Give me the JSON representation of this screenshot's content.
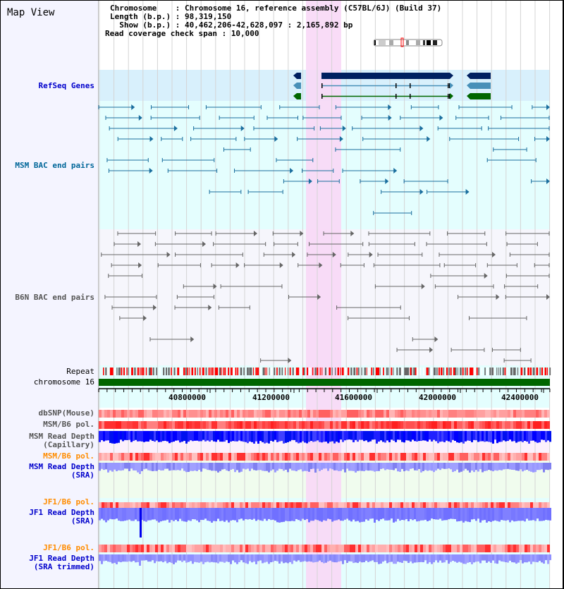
{
  "title": "Map View",
  "header": {
    "chromosome_label": "Chromosome    : ",
    "chromosome_value": "Chromosome 16, reference assembly (C57BL/6J) (Build 37)",
    "length_label": "Length (b.p.) : ",
    "length_value": "98,319,150",
    "show_label": "  Show (b.p.) : ",
    "show_value": "40,462,206-42,628,097 : 2,165,892 bp",
    "span_label": "Read coverage check span : ",
    "span_value": "10,000"
  },
  "tracks": {
    "refseq": "RefSeq Genes",
    "msm_bac": "MSM BAC end pairs",
    "b6n_bac": "B6N BAC end pairs",
    "repeat": "Repeat",
    "chromosome": "chromosome 16",
    "dbsnp": "dbSNP(Mouse)",
    "msm_b6_pol": "MSM/B6 pol.",
    "msm_depth_cap_1": "MSM Read Depth",
    "msm_depth_cap_2": "(Capillary)",
    "msm_b6_pol_sra": "MSM/B6 pol.",
    "msm_depth_sra_1": "MSM Read Depth",
    "msm_depth_sra_2": "(SRA)",
    "jf1_b6_pol": "JF1/B6 pol.",
    "jf1_depth_1": "JF1 Read Depth",
    "jf1_depth_2": "(SRA)",
    "jf1_b6_pol_2": "JF1/B6 pol.",
    "jf1_trim_1": "JF1 Read Depth",
    "jf1_trim_2": "(SRA trimmed)"
  },
  "axis": {
    "ticks": [
      "40800000",
      "41200000",
      "41600000",
      "42000000",
      "42400000"
    ]
  },
  "colors": {
    "refseq_dark": "#002060",
    "refseq_light": "#4890b8",
    "refseq_green": "#006600",
    "msm_bac": "#1a6e9e",
    "b6n_bac": "#666666",
    "highlight": "#f8d8f6",
    "depth_blue": "#0000ff"
  }
}
